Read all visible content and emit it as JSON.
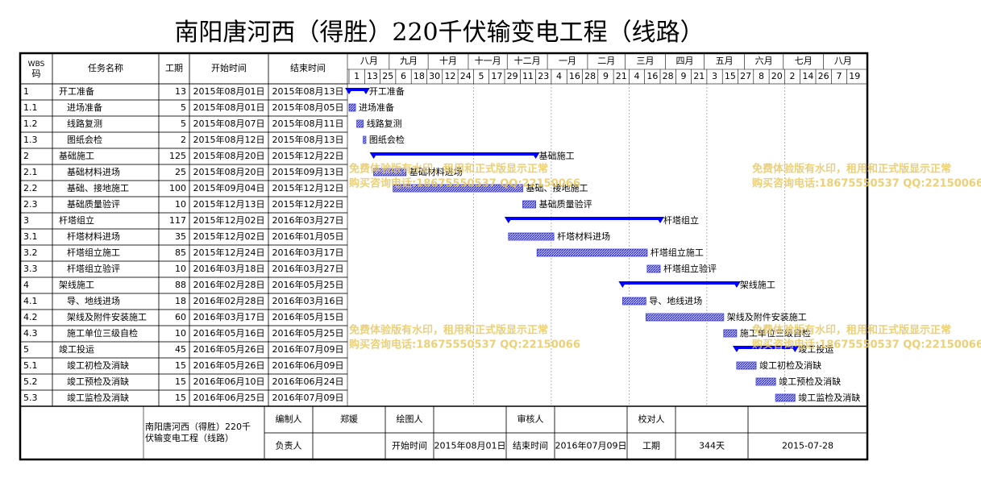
{
  "chart_data": {
    "type": "gantt",
    "title": "南阳唐河西（得胜）220千伏输变电工程（线路）",
    "headers": {
      "wbs": "WBS码",
      "name": "任务名称",
      "duration": "工期",
      "start": "开始时间",
      "end": "结束时间"
    },
    "months": [
      "八月",
      "九月",
      "十月",
      "十一月",
      "十二月",
      "一月",
      "二月",
      "三月",
      "四月",
      "五月",
      "六月",
      "七月",
      "八月"
    ],
    "days": [
      1,
      13,
      25,
      6,
      18,
      30,
      12,
      24,
      5,
      17,
      29,
      11,
      23,
      4,
      16,
      28,
      9,
      21,
      4,
      16,
      28,
      9,
      21,
      3,
      15,
      27,
      8,
      20,
      2,
      14,
      26,
      7,
      19
    ],
    "summary_color": "#0000ff",
    "task_color": "#3a3ae0",
    "tasks": [
      {
        "wbs": "1",
        "name": "开工准备",
        "duration": 13,
        "start": "2015年08月01日",
        "end": "2015年08月13日"
      },
      {
        "wbs": "1.1",
        "name": "进场准备",
        "duration": 5,
        "start": "2015年08月01日",
        "end": "2015年08月05日"
      },
      {
        "wbs": "1.2",
        "name": "线路复测",
        "duration": 5,
        "start": "2015年08月07日",
        "end": "2015年08月11日"
      },
      {
        "wbs": "1.3",
        "name": "图纸会检",
        "duration": 2,
        "start": "2015年08月12日",
        "end": "2015年08月13日"
      },
      {
        "wbs": "2",
        "name": "基础施工",
        "duration": 125,
        "start": "2015年08月20日",
        "end": "2015年12月22日"
      },
      {
        "wbs": "2.1",
        "name": "基础材料进场",
        "duration": 25,
        "start": "2015年08月20日",
        "end": "2015年09月13日"
      },
      {
        "wbs": "2.2",
        "name": "基础、接地施工",
        "duration": 100,
        "start": "2015年09月04日",
        "end": "2015年12月12日"
      },
      {
        "wbs": "2.3",
        "name": "基础质量验评",
        "duration": 10,
        "start": "2015年12月13日",
        "end": "2015年12月22日"
      },
      {
        "wbs": "3",
        "name": "杆塔组立",
        "duration": 117,
        "start": "2015年12月02日",
        "end": "2016年03月27日"
      },
      {
        "wbs": "3.1",
        "name": "杆塔材料进场",
        "duration": 35,
        "start": "2015年12月02日",
        "end": "2016年01月05日"
      },
      {
        "wbs": "3.2",
        "name": "杆塔组立施工",
        "duration": 85,
        "start": "2015年12月24日",
        "end": "2016年03月17日"
      },
      {
        "wbs": "3.3",
        "name": "杆塔组立验评",
        "duration": 10,
        "start": "2016年03月18日",
        "end": "2016年03月27日"
      },
      {
        "wbs": "4",
        "name": "架线施工",
        "duration": 88,
        "start": "2016年02月28日",
        "end": "2016年05月25日"
      },
      {
        "wbs": "4.1",
        "name": "导、地线进场",
        "duration": 18,
        "start": "2016年02月28日",
        "end": "2016年03月16日"
      },
      {
        "wbs": "4.2",
        "name": "架线及附件安装施工",
        "duration": 60,
        "start": "2016年03月17日",
        "end": "2016年05月15日"
      },
      {
        "wbs": "4.3",
        "name": "施工单位三级自检",
        "duration": 10,
        "start": "2016年05月16日",
        "end": "2016年05月25日"
      },
      {
        "wbs": "5",
        "name": "竣工投运",
        "duration": 45,
        "start": "2016年05月26日",
        "end": "2016年07月09日"
      },
      {
        "wbs": "5.1",
        "name": "竣工初检及消缺",
        "duration": 15,
        "start": "2016年05月26日",
        "end": "2016年06月09日"
      },
      {
        "wbs": "5.2",
        "name": "竣工预检及消缺",
        "duration": 15,
        "start": "2016年06月10日",
        "end": "2016年06月24日"
      },
      {
        "wbs": "5.3",
        "name": "竣工监检及消缺",
        "duration": 15,
        "start": "2016年06月25日",
        "end": "2016年07月09日",
        "color": "#ff0000"
      }
    ],
    "watermark": [
      "免费体验版有水印，租用和正式版显示正常",
      "购买咨询电话:18675550537 QQ:22150066"
    ],
    "footer": {
      "project": "南阳唐河西（得胜）220千伏输变电工程（线路）",
      "compiler_label": "编制人",
      "compiler": "郑媛",
      "drawer_label": "绘图人",
      "reviewer_label": "审核人",
      "checker_label": "校对人",
      "manager_label": "负责人",
      "start_label": "开始时间",
      "start": "2015年08月01日",
      "end_label": "结束时间",
      "end": "2016年07月09日",
      "duration_label": "工期",
      "duration": "344天",
      "date": "2015-07-28"
    }
  }
}
